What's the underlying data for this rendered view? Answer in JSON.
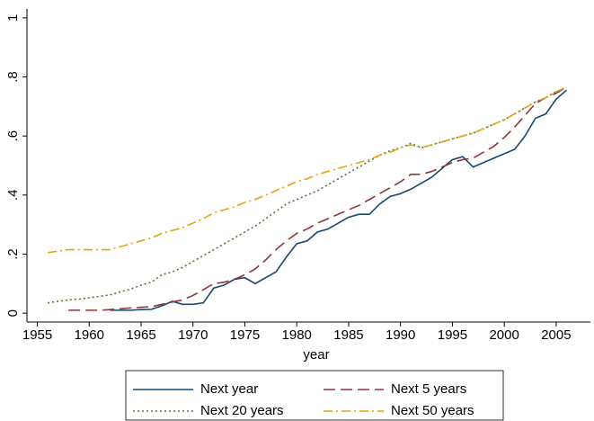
{
  "chart_data": {
    "type": "line",
    "x_label": "year",
    "x": [
      1956,
      1957,
      1958,
      1959,
      1960,
      1961,
      1962,
      1963,
      1964,
      1965,
      1966,
      1967,
      1968,
      1969,
      1970,
      1971,
      1972,
      1973,
      1974,
      1975,
      1976,
      1977,
      1978,
      1979,
      1980,
      1981,
      1982,
      1983,
      1984,
      1985,
      1986,
      1987,
      1988,
      1989,
      1990,
      1991,
      1992,
      1993,
      1994,
      1995,
      1996,
      1997,
      1998,
      1999,
      2000,
      2001,
      2002,
      2003,
      2004,
      2005,
      2006
    ],
    "series": [
      {
        "name": "Next year",
        "color": "#1a476f",
        "style": "solid",
        "values": [
          null,
          null,
          null,
          null,
          null,
          null,
          0.01,
          0.01,
          0.01,
          0.012,
          0.013,
          0.025,
          0.04,
          0.03,
          0.03,
          0.035,
          0.085,
          0.095,
          0.115,
          0.12,
          0.1,
          0.12,
          0.14,
          0.19,
          0.235,
          0.245,
          0.275,
          0.285,
          0.305,
          0.325,
          0.335,
          0.335,
          0.37,
          0.395,
          0.405,
          0.42,
          0.44,
          0.46,
          0.49,
          0.52,
          0.53,
          0.495,
          0.51,
          0.525,
          0.54,
          0.555,
          0.6,
          0.66,
          0.675,
          0.725,
          0.755
        ]
      },
      {
        "name": "Next 5 years",
        "color": "#90353b",
        "style": "dash",
        "values": [
          null,
          null,
          0.01,
          0.01,
          0.01,
          0.01,
          0.012,
          0.015,
          0.018,
          0.02,
          0.022,
          0.03,
          0.038,
          0.045,
          0.06,
          0.08,
          0.1,
          0.105,
          0.115,
          0.13,
          0.15,
          0.18,
          0.215,
          0.245,
          0.27,
          0.285,
          0.305,
          0.32,
          0.335,
          0.35,
          0.365,
          0.385,
          0.405,
          0.425,
          0.445,
          0.47,
          0.47,
          0.48,
          0.495,
          0.51,
          0.52,
          0.525,
          0.545,
          0.565,
          0.595,
          0.63,
          0.67,
          0.71,
          0.73,
          0.745,
          0.765
        ]
      },
      {
        "name": "Next 20 years",
        "color": "#55752f",
        "style": "dot",
        "values": [
          0.035,
          0.04,
          0.045,
          0.048,
          0.052,
          0.057,
          0.062,
          0.072,
          0.082,
          0.095,
          0.105,
          0.13,
          0.14,
          0.155,
          0.175,
          0.195,
          0.215,
          0.235,
          0.255,
          0.275,
          0.295,
          0.32,
          0.345,
          0.37,
          0.385,
          0.4,
          0.415,
          0.435,
          0.455,
          0.475,
          0.495,
          0.515,
          0.535,
          0.55,
          0.56,
          0.575,
          0.56,
          0.57,
          0.58,
          0.59,
          0.6,
          0.61,
          0.625,
          0.64,
          0.655,
          0.675,
          0.695,
          0.715,
          0.73,
          0.75,
          0.765
        ]
      },
      {
        "name": "Next 50 years",
        "color": "#e8a010",
        "style": "dash-dot",
        "values": [
          0.205,
          0.21,
          0.215,
          0.215,
          0.215,
          0.215,
          0.215,
          0.225,
          0.235,
          0.245,
          0.255,
          0.27,
          0.28,
          0.29,
          0.305,
          0.32,
          0.34,
          0.35,
          0.36,
          0.375,
          0.385,
          0.4,
          0.415,
          0.43,
          0.445,
          0.455,
          0.47,
          0.48,
          0.49,
          0.5,
          0.51,
          0.52,
          0.535,
          0.545,
          0.56,
          0.57,
          0.56,
          0.57,
          0.58,
          0.59,
          0.6,
          0.61,
          0.625,
          0.64,
          0.655,
          0.675,
          0.695,
          0.715,
          0.73,
          0.75,
          0.765
        ]
      }
    ],
    "xlim": [
      1954,
      2008.3
    ],
    "xticks": [
      1955,
      1960,
      1965,
      1970,
      1975,
      1980,
      1985,
      1990,
      1995,
      2000,
      2005
    ],
    "ylim": [
      -0.03,
      1.03
    ],
    "yticks": [
      0,
      {
        "value": 0.2,
        "label": ".2"
      },
      {
        "value": 0.4,
        "label": ".4"
      },
      {
        "value": 0.6,
        "label": ".6"
      },
      {
        "value": 0.8,
        "label": ".8"
      },
      1
    ],
    "grid": false,
    "legend": "bottom"
  }
}
